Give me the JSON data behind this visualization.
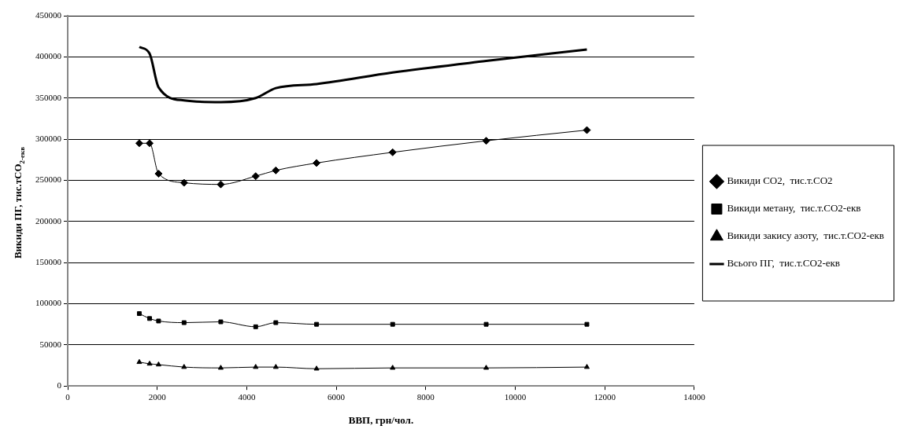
{
  "chart_data": {
    "type": "line",
    "xlabel": "ВВП, грн/чол.",
    "ylabel": "Викиди ПГ, тис.тCO$_{2-екв}$",
    "x": [
      1600,
      1830,
      2030,
      2600,
      3420,
      4200,
      4650,
      5560,
      7260,
      9350,
      11600
    ],
    "series": [
      {
        "name": "Викиди СО2,  тис.т.СО2",
        "color": "#000000",
        "marker": "diamond",
        "values": [
          295000,
          295000,
          258000,
          247000,
          245000,
          255000,
          262000,
          271000,
          284000,
          298000,
          311000
        ]
      },
      {
        "name": "Викиди метану,  тис.т.СО2-екв",
        "color": "#000000",
        "marker": "square",
        "values": [
          88000,
          82000,
          79000,
          77000,
          78000,
          72000,
          77000,
          75000,
          75000,
          75000,
          75000
        ]
      },
      {
        "name": "Викиди закису азоту,  тис.т.СО2-екв",
        "color": "#000000",
        "marker": "triangle",
        "values": [
          29000,
          27000,
          26000,
          23000,
          22000,
          23000,
          23000,
          21000,
          22000,
          22000,
          23000
        ]
      },
      {
        "name": "Всього ПГ,  тис.т.СО2-екв",
        "color": "#000000",
        "marker": "none",
        "values": [
          412000,
          404000,
          363000,
          347000,
          345000,
          350000,
          362000,
          367000,
          381000,
          395000,
          409000
        ]
      }
    ],
    "xlim": [
      0,
      14000
    ],
    "xticks": [
      0,
      2000,
      4000,
      6000,
      8000,
      10000,
      12000,
      14000
    ],
    "ylim": [
      0,
      450000
    ],
    "yticks": [
      0,
      50000,
      100000,
      150000,
      200000,
      250000,
      300000,
      350000,
      400000,
      450000
    ],
    "grid": "y",
    "legend": "right",
    "line_style": "solid"
  }
}
